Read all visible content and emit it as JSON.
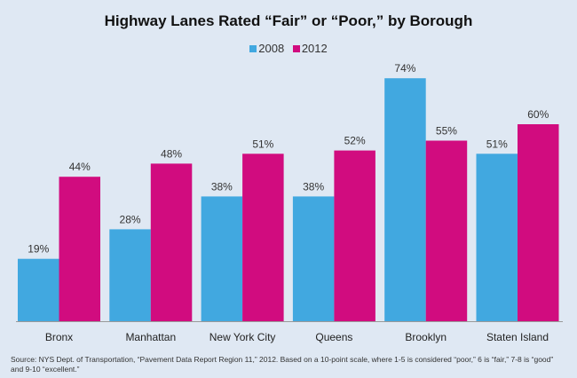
{
  "chart_data": {
    "type": "bar",
    "title": "Highway Lanes Rated “Fair” or “Poor,” by Borough",
    "categories": [
      "Bronx",
      "Manhattan",
      "New York City",
      "Queens",
      "Brooklyn",
      "Staten Island"
    ],
    "series": [
      {
        "name": "2008",
        "color": "#41a8e0",
        "values": [
          19,
          28,
          38,
          38,
          74,
          51
        ]
      },
      {
        "name": "2012",
        "color": "#d10c7f",
        "values": [
          44,
          48,
          51,
          52,
          55,
          60
        ]
      }
    ],
    "value_suffix": "%",
    "ylim": [
      0,
      80
    ],
    "legend": "top-center",
    "grid": false,
    "xlabel": "",
    "ylabel": ""
  },
  "source": "Source: NYS Dept. of Transportation, “Pavement Data Report Region 11,” 2012. Based on a 10-point scale, where 1-5 is considered “poor,” 6 is “fair,” 7-8 is “good” and 9-10 “excellent.”"
}
